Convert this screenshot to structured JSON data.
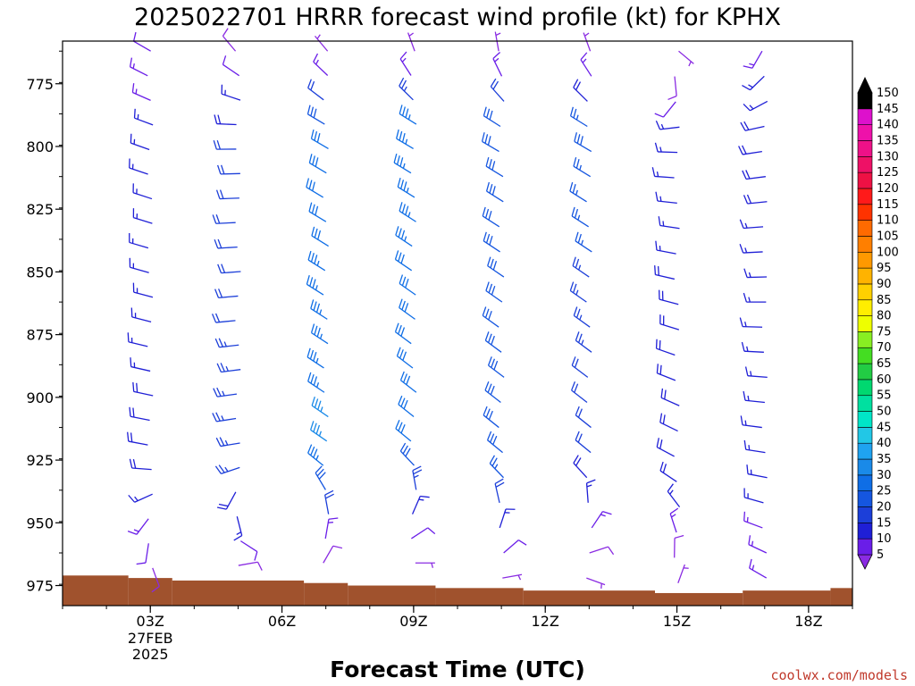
{
  "title": "2025022701 HRRR forecast wind profile (kt) for KPHX",
  "xlabel": "Forecast Time (UTC)",
  "credit": "coolwx.com/models",
  "ground_color": "#a0522d",
  "chart_data": {
    "type": "wind_barbs",
    "y_axis": {
      "label": "",
      "ticks": [
        775,
        800,
        825,
        850,
        875,
        900,
        925,
        950,
        975
      ],
      "range": [
        758,
        983
      ],
      "inverted": true
    },
    "x_axis": {
      "range": [
        1,
        19
      ],
      "ticks": [
        {
          "t": 3,
          "label": "03Z",
          "sub1": "27FEB",
          "sub2": "2025"
        },
        {
          "t": 6,
          "label": "06Z"
        },
        {
          "t": 9,
          "label": "09Z"
        },
        {
          "t": 12,
          "label": "12Z"
        },
        {
          "t": 15,
          "label": "15Z"
        },
        {
          "t": 18,
          "label": "18Z"
        }
      ]
    },
    "colorbar": {
      "levels": [
        5,
        10,
        15,
        20,
        25,
        30,
        35,
        40,
        45,
        50,
        55,
        60,
        65,
        70,
        75,
        80,
        85,
        90,
        95,
        100,
        105,
        110,
        115,
        120,
        125,
        130,
        135,
        140,
        145,
        150
      ],
      "colors": [
        "#8a2be2",
        "#6a1ee8",
        "#1f1fd6",
        "#1c3fd9",
        "#1556e0",
        "#0f6ee6",
        "#1a8ae8",
        "#1fa3f0",
        "#22c7e6",
        "#00e6c8",
        "#00e0a0",
        "#00d870",
        "#22cc44",
        "#44dd22",
        "#88ee22",
        "#eeff00",
        "#ffee00",
        "#ffd000",
        "#ffb300",
        "#ff9900",
        "#ff7f00",
        "#ff6a00",
        "#ff3300",
        "#ff1a1a",
        "#ee1144",
        "#ee1166",
        "#ee1188",
        "#ee11aa",
        "#dd11cc",
        "#000000"
      ]
    },
    "ground_surface": [
      {
        "t_start": 1,
        "t_end": 2.5,
        "p": 971
      },
      {
        "t_start": 2.5,
        "t_end": 3.5,
        "p": 972
      },
      {
        "t_start": 3.5,
        "t_end": 6.5,
        "p": 973
      },
      {
        "t_start": 6.5,
        "t_end": 7.5,
        "p": 974
      },
      {
        "t_start": 7.5,
        "t_end": 9.5,
        "p": 975
      },
      {
        "t_start": 9.5,
        "t_end": 11.5,
        "p": 976
      },
      {
        "t_start": 11.5,
        "t_end": 14.5,
        "p": 977
      },
      {
        "t_start": 14.5,
        "t_end": 16.5,
        "p": 978
      },
      {
        "t_start": 16.5,
        "t_end": 18.5,
        "p": 977
      },
      {
        "t_start": 18.5,
        "t_end": 19,
        "p": 976
      }
    ],
    "profiles": [
      {
        "time": 3,
        "p_top": 762,
        "p_bottom": 968,
        "sfc": {
          "speed": 8,
          "dir": 160
        },
        "top": {
          "speed": 12,
          "dir": 300
        },
        "mid": {
          "speed": 16,
          "dir": 290
        },
        "low": {
          "speed": 18,
          "dir": 280
        }
      },
      {
        "time": 5,
        "p_top": 762,
        "p_bottom": 967,
        "sfc": {
          "speed": 8,
          "dir": 80
        },
        "top": {
          "speed": 8,
          "dir": 320
        },
        "mid": {
          "speed": 20,
          "dir": 270
        },
        "low": {
          "speed": 24,
          "dir": 260
        }
      },
      {
        "time": 7,
        "p_top": 762,
        "p_bottom": 966,
        "sfc": {
          "speed": 8,
          "dir": 30
        },
        "top": {
          "speed": 6,
          "dir": 320
        },
        "mid": {
          "speed": 30,
          "dir": 300
        },
        "low": {
          "speed": 36,
          "dir": 305
        }
      },
      {
        "time": 9,
        "p_top": 762,
        "p_bottom": 966,
        "sfc": {
          "speed": 6,
          "dir": 90
        },
        "top": {
          "speed": 6,
          "dir": 340
        },
        "mid": {
          "speed": 34,
          "dir": 300
        },
        "low": {
          "speed": 30,
          "dir": 310
        }
      },
      {
        "time": 11,
        "p_top": 762,
        "p_bottom": 972,
        "sfc": {
          "speed": 6,
          "dir": 80
        },
        "top": {
          "speed": 6,
          "dir": 350
        },
        "mid": {
          "speed": 30,
          "dir": 300
        },
        "low": {
          "speed": 28,
          "dir": 310
        }
      },
      {
        "time": 13,
        "p_top": 762,
        "p_bottom": 972,
        "sfc": {
          "speed": 6,
          "dir": 110
        },
        "top": {
          "speed": 6,
          "dir": 340
        },
        "mid": {
          "speed": 28,
          "dir": 300
        },
        "low": {
          "speed": 20,
          "dir": 310
        }
      },
      {
        "time": 15,
        "p_top": 762,
        "p_bottom": 974,
        "sfc": {
          "speed": 6,
          "dir": 20
        },
        "top": {
          "speed": 6,
          "dir": 130
        },
        "mid": {
          "speed": 16,
          "dir": 270
        },
        "low": {
          "speed": 20,
          "dir": 300
        }
      },
      {
        "time": 17,
        "p_top": 762,
        "p_bottom": 972,
        "sfc": {
          "speed": 14,
          "dir": 300
        },
        "top": {
          "speed": 14,
          "dir": 210
        },
        "mid": {
          "speed": 18,
          "dir": 260
        },
        "low": {
          "speed": 16,
          "dir": 280
        }
      }
    ]
  }
}
